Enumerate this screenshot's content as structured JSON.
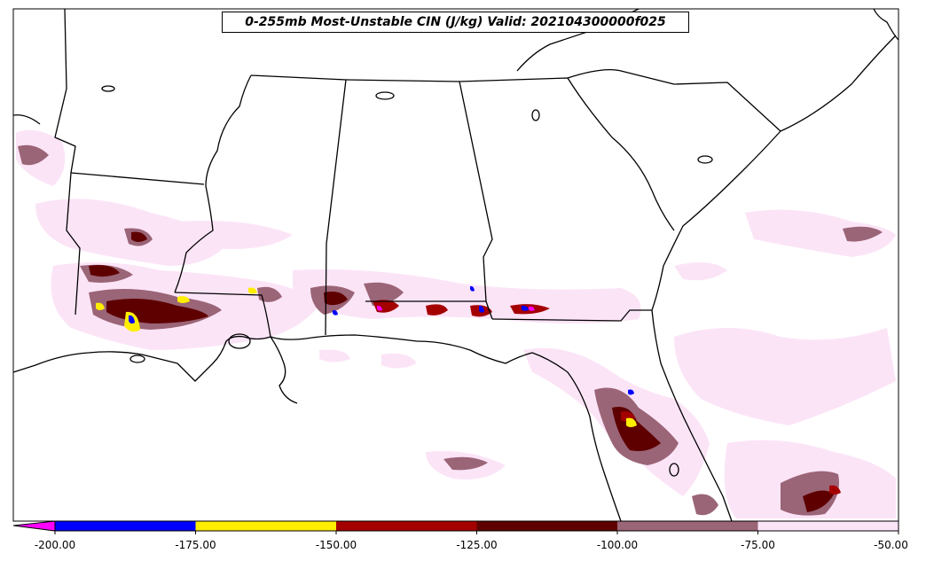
{
  "title": "0-255mb Most-Unstable CIN (J/kg) Valid: 202104300000f025",
  "colorbar": {
    "ticks": [
      "-200.00",
      "-175.00",
      "-150.00",
      "-125.00",
      "-100.00",
      "-75.00",
      "-50.00"
    ],
    "bins": [
      {
        "from": -200,
        "to": -175,
        "color": "#0000ff"
      },
      {
        "from": -175,
        "to": -150,
        "color": "#ffee00"
      },
      {
        "from": -150,
        "to": -125,
        "color": "#a50000"
      },
      {
        "from": -125,
        "to": -100,
        "color": "#5e0000"
      },
      {
        "from": -100,
        "to": -75,
        "color": "#9a6577"
      },
      {
        "from": -75,
        "to": -50,
        "color": "#fce4f7"
      }
    ],
    "under_color": "#ff00ff"
  },
  "map": {
    "region": "Southeastern United States",
    "background": "#ffffff",
    "field_colors": {
      "light_pink": "#fce4f7",
      "mauve": "#9a6577",
      "dark_red": "#5e0000",
      "red": "#a50000",
      "yellow": "#ffee00",
      "blue": "#0000ff",
      "magenta": "#ff00ff"
    }
  }
}
